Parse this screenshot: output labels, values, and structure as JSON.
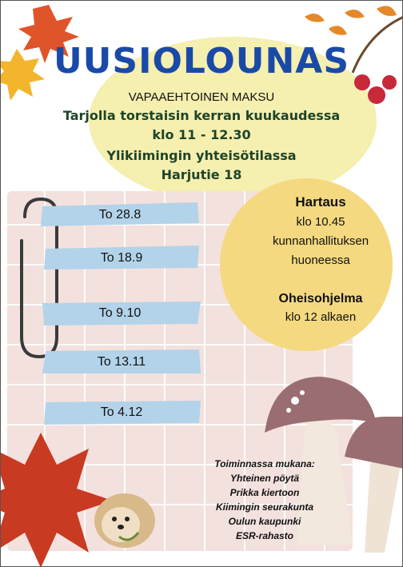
{
  "poster": {
    "title": "UUSIOLOUNAS",
    "subtitle": "VAPAAEHTOINEN MAKSU",
    "details": [
      "Tarjolla torstaisin kerran kuukaudessa",
      "klo 11 - 12.30",
      "Ylikiimingin yhteisötilassa",
      "Harjutie 18"
    ],
    "dates": [
      "To 28.8",
      "To 18.9",
      "To 9.10",
      "To 13.11",
      "To 4.12"
    ],
    "hartaus": {
      "heading": "Hartaus",
      "lines": [
        "klo 10.45",
        "kunnanhallituksen",
        "huoneessa"
      ]
    },
    "oheisohjelma": {
      "heading": "Oheisohjelma",
      "line": "klo 12 alkaen"
    },
    "credits": {
      "heading": "Toiminnassa mukana:",
      "items": [
        "Yhteinen pöytä",
        "Prikka kiertoon",
        "Kiimingin seurakunta",
        "Oulun kaupunki",
        "ESR-rahasto"
      ]
    }
  },
  "colors": {
    "title": "#1a4aa8",
    "details_text": "#1e4428",
    "yellow_circle": "#f5efb0",
    "date_tape": "#b3d3ea",
    "grid_paper": "#f3e1de",
    "maple_leaf": "#c83a22"
  }
}
